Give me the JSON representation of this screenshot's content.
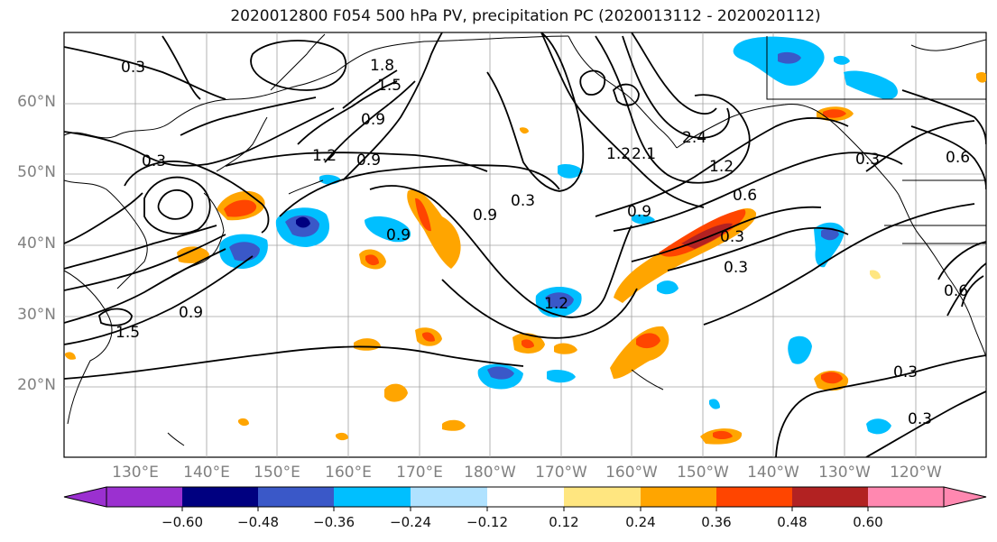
{
  "title": "2020012800 F054 500 hPa PV, precipitation PC (2020013112 - 2020020112)",
  "lat_labels": [
    "60°N",
    "50°N",
    "40°N",
    "30°N",
    "20°N"
  ],
  "lon_labels": [
    "130°E",
    "140°E",
    "150°E",
    "160°E",
    "170°E",
    "180°W",
    "170°W",
    "160°W",
    "150°W",
    "140°W",
    "130°W",
    "120°W"
  ],
  "contour_labels": [
    "0.3",
    "1.8",
    "1.5",
    "0.3",
    "1.2",
    "0.9",
    "1.2",
    "0.9",
    "0.3",
    "0.9",
    "0.6",
    "2.1",
    "0.3",
    "2.4",
    "1.2",
    "0.9",
    "0.6",
    "0.3",
    "0.3",
    "0.9",
    "1.5",
    "1.2",
    "0.3",
    "0.3",
    "0.9",
    "0.6"
  ],
  "colorbar": {
    "colors": [
      "#9b30d0",
      "#000080",
      "#3a58c8",
      "#00bfff",
      "#b0e2ff",
      "#ffffff",
      "#ffe680",
      "#ffa500",
      "#ff4500",
      "#b22222",
      "#ff88b0"
    ],
    "tick_labels": [
      "−0.60",
      "−0.48",
      "−0.36",
      "−0.24",
      "−0.12",
      "0.12",
      "0.24",
      "0.36",
      "0.48",
      "0.60"
    ]
  },
  "colors": {
    "grid": "#a0a0a0",
    "contour": "#000000",
    "axis_label": "#808080"
  }
}
